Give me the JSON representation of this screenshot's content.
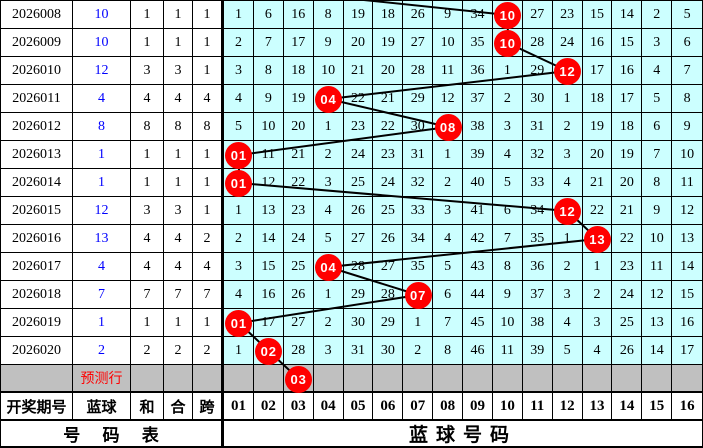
{
  "colors": {
    "grid_bg": "#CCFFFF",
    "prediction_bg": "#C0C0C0",
    "ball_red": "#FF0000",
    "blue_text": "#0000FF",
    "prediction_text_red": "#FF0000",
    "border": "#000000"
  },
  "table": {
    "header": {
      "period": "开奖期号",
      "blue": "蓝球",
      "sum": "和",
      "he": "合",
      "span": "跨"
    },
    "grid_header": [
      "01",
      "02",
      "03",
      "04",
      "05",
      "06",
      "07",
      "08",
      "09",
      "10",
      "11",
      "12",
      "13",
      "14",
      "15",
      "16"
    ],
    "footer_left": "号 码 表",
    "footer_right": "蓝球号码",
    "prediction_label": "预测行",
    "prev_ball_col": 1,
    "rows": [
      {
        "period": "2026008",
        "blue": "10",
        "sum": "1",
        "he": "1",
        "span": "1",
        "ball_col": 10,
        "ball_label": "10",
        "cells": [
          "1",
          "6",
          "16",
          "8",
          "19",
          "18",
          "26",
          "9",
          "34",
          "",
          "27",
          "23",
          "15",
          "14",
          "2",
          "5"
        ]
      },
      {
        "period": "2026009",
        "blue": "10",
        "sum": "1",
        "he": "1",
        "span": "1",
        "ball_col": 10,
        "ball_label": "10",
        "cells": [
          "2",
          "7",
          "17",
          "9",
          "20",
          "19",
          "27",
          "10",
          "35",
          "",
          "28",
          "24",
          "16",
          "15",
          "3",
          "6"
        ]
      },
      {
        "period": "2026010",
        "blue": "12",
        "sum": "3",
        "he": "3",
        "span": "1",
        "ball_col": 12,
        "ball_label": "12",
        "cells": [
          "3",
          "8",
          "18",
          "10",
          "21",
          "20",
          "28",
          "11",
          "36",
          "1",
          "29",
          "",
          "17",
          "16",
          "4",
          "7"
        ]
      },
      {
        "period": "2026011",
        "blue": "4",
        "sum": "4",
        "he": "4",
        "span": "4",
        "ball_col": 4,
        "ball_label": "04",
        "cells": [
          "4",
          "9",
          "19",
          "",
          "22",
          "21",
          "29",
          "12",
          "37",
          "2",
          "30",
          "1",
          "18",
          "17",
          "5",
          "8"
        ]
      },
      {
        "period": "2026012",
        "blue": "8",
        "sum": "8",
        "he": "8",
        "span": "8",
        "ball_col": 8,
        "ball_label": "08",
        "cells": [
          "5",
          "10",
          "20",
          "1",
          "23",
          "22",
          "30",
          "",
          "38",
          "3",
          "31",
          "2",
          "19",
          "18",
          "6",
          "9"
        ]
      },
      {
        "period": "2026013",
        "blue": "1",
        "sum": "1",
        "he": "1",
        "span": "1",
        "ball_col": 1,
        "ball_label": "01",
        "cells": [
          "",
          "11",
          "21",
          "2",
          "24",
          "23",
          "31",
          "1",
          "39",
          "4",
          "32",
          "3",
          "20",
          "19",
          "7",
          "10"
        ]
      },
      {
        "period": "2026014",
        "blue": "1",
        "sum": "1",
        "he": "1",
        "span": "1",
        "ball_col": 1,
        "ball_label": "01",
        "cells": [
          "",
          "12",
          "22",
          "3",
          "25",
          "24",
          "32",
          "2",
          "40",
          "5",
          "33",
          "4",
          "21",
          "20",
          "8",
          "11"
        ]
      },
      {
        "period": "2026015",
        "blue": "12",
        "sum": "3",
        "he": "3",
        "span": "1",
        "ball_col": 12,
        "ball_label": "12",
        "cells": [
          "1",
          "13",
          "23",
          "4",
          "26",
          "25",
          "33",
          "3",
          "41",
          "6",
          "34",
          "",
          "22",
          "21",
          "9",
          "12"
        ]
      },
      {
        "period": "2026016",
        "blue": "13",
        "sum": "4",
        "he": "4",
        "span": "2",
        "ball_col": 13,
        "ball_label": "13",
        "cells": [
          "2",
          "14",
          "24",
          "5",
          "27",
          "26",
          "34",
          "4",
          "42",
          "7",
          "35",
          "1",
          "",
          "22",
          "10",
          "13"
        ]
      },
      {
        "period": "2026017",
        "blue": "4",
        "sum": "4",
        "he": "4",
        "span": "4",
        "ball_col": 4,
        "ball_label": "04",
        "cells": [
          "3",
          "15",
          "25",
          "",
          "28",
          "27",
          "35",
          "5",
          "43",
          "8",
          "36",
          "2",
          "1",
          "23",
          "11",
          "14"
        ]
      },
      {
        "period": "2026018",
        "blue": "7",
        "sum": "7",
        "he": "7",
        "span": "7",
        "ball_col": 7,
        "ball_label": "07",
        "cells": [
          "4",
          "16",
          "26",
          "1",
          "29",
          "28",
          "",
          "6",
          "44",
          "9",
          "37",
          "3",
          "2",
          "24",
          "12",
          "15"
        ]
      },
      {
        "period": "2026019",
        "blue": "1",
        "sum": "1",
        "he": "1",
        "span": "1",
        "ball_col": 1,
        "ball_label": "01",
        "cells": [
          "",
          "17",
          "27",
          "2",
          "30",
          "29",
          "1",
          "7",
          "45",
          "10",
          "38",
          "4",
          "3",
          "25",
          "13",
          "16"
        ]
      },
      {
        "period": "2026020",
        "blue": "2",
        "sum": "2",
        "he": "2",
        "span": "2",
        "ball_col": 2,
        "ball_label": "02",
        "cells": [
          "1",
          "",
          "28",
          "3",
          "31",
          "30",
          "2",
          "8",
          "46",
          "11",
          "39",
          "5",
          "4",
          "26",
          "14",
          "17"
        ]
      }
    ],
    "prediction": {
      "ball_col": 3,
      "ball_label": "03"
    }
  },
  "chart_data": {
    "type": "line",
    "title": "",
    "xlabel": "开奖期号",
    "ylabel": "蓝球号码",
    "ylim": [
      1,
      16
    ],
    "x": [
      "2026008",
      "2026009",
      "2026010",
      "2026011",
      "2026012",
      "2026013",
      "2026014",
      "2026015",
      "2026016",
      "2026017",
      "2026018",
      "2026019",
      "2026020"
    ],
    "values": [
      10,
      10,
      12,
      4,
      8,
      1,
      1,
      12,
      13,
      4,
      7,
      1,
      2
    ],
    "prediction": {
      "label": "预测行",
      "value": 3
    },
    "grid": true,
    "legend_position": "none"
  }
}
